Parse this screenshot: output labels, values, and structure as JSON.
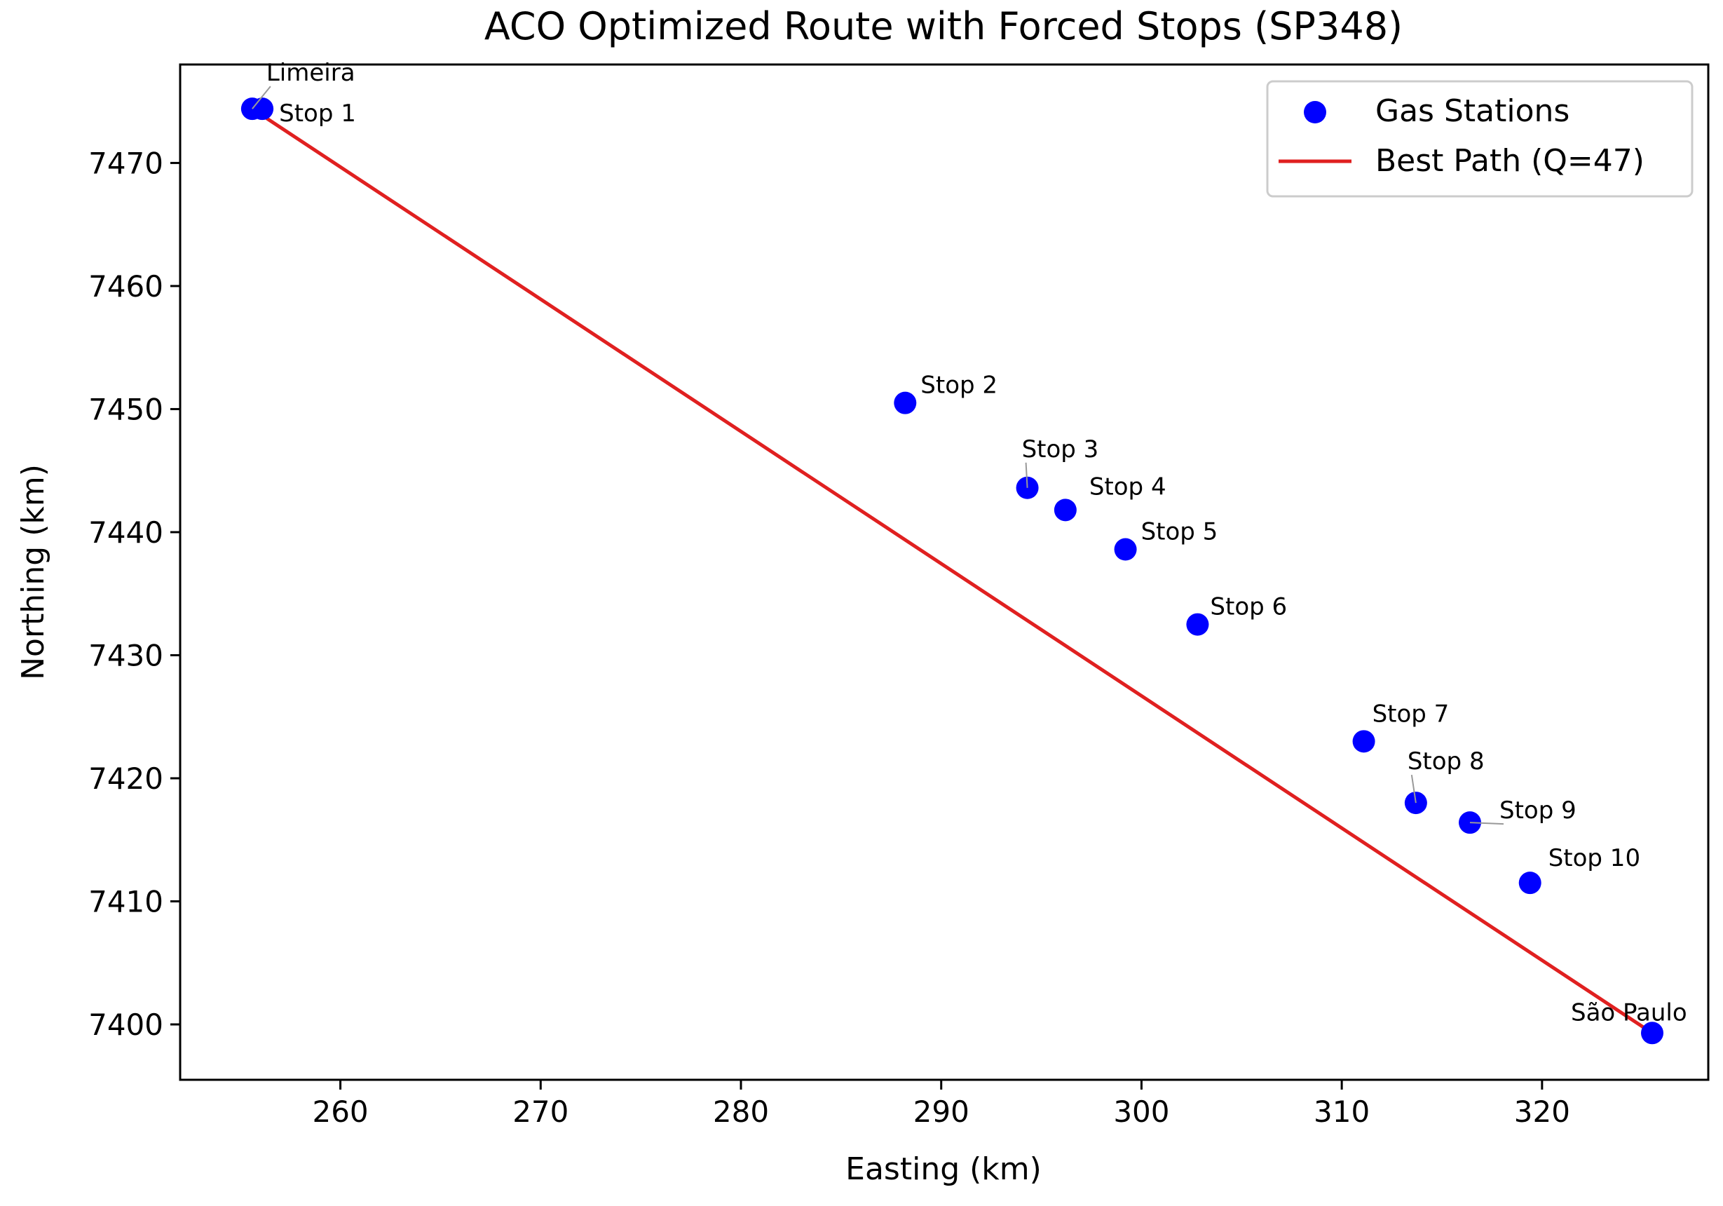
{
  "chart_data": {
    "type": "scatter",
    "title": "ACO Optimized Route with Forced Stops (SP348)",
    "xlabel": "Easting (km)",
    "ylabel": "Northing (km)",
    "xlim": [
      252.0,
      328.3
    ],
    "ylim": [
      7395.5,
      7478.0
    ],
    "xticks": [
      260,
      270,
      280,
      290,
      300,
      310,
      320
    ],
    "yticks": [
      7400,
      7410,
      7420,
      7430,
      7440,
      7450,
      7460,
      7470
    ],
    "grid": false,
    "legend_position": "upper right",
    "colors": {
      "points": "#0000ff",
      "path": "#e02020",
      "axes": "#000000",
      "annotation_line": "#999999"
    },
    "points": [
      {
        "name": "Limeira",
        "x": 255.6,
        "y": 7474.4
      },
      {
        "name": "Stop 1",
        "x": 256.1,
        "y": 7474.4
      },
      {
        "name": "Stop 2",
        "x": 288.2,
        "y": 7450.5
      },
      {
        "name": "Stop 3",
        "x": 294.3,
        "y": 7443.6
      },
      {
        "name": "Stop 4",
        "x": 296.2,
        "y": 7441.8
      },
      {
        "name": "Stop 5",
        "x": 299.2,
        "y": 7438.6
      },
      {
        "name": "Stop 6",
        "x": 302.8,
        "y": 7432.5
      },
      {
        "name": "Stop 7",
        "x": 311.1,
        "y": 7423.0
      },
      {
        "name": "Stop 8",
        "x": 313.7,
        "y": 7418.0
      },
      {
        "name": "Stop 9",
        "x": 316.4,
        "y": 7416.4
      },
      {
        "name": "Stop 10",
        "x": 319.4,
        "y": 7411.5
      },
      {
        "name": "São Paulo",
        "x": 325.5,
        "y": 7399.3
      }
    ],
    "series": [
      {
        "name": "Gas Stations",
        "kind": "scatter"
      },
      {
        "name": "Best Path (Q=47)",
        "kind": "line",
        "x": [
          255.6,
          325.5
        ],
        "y": [
          7474.4,
          7399.3
        ]
      }
    ]
  }
}
